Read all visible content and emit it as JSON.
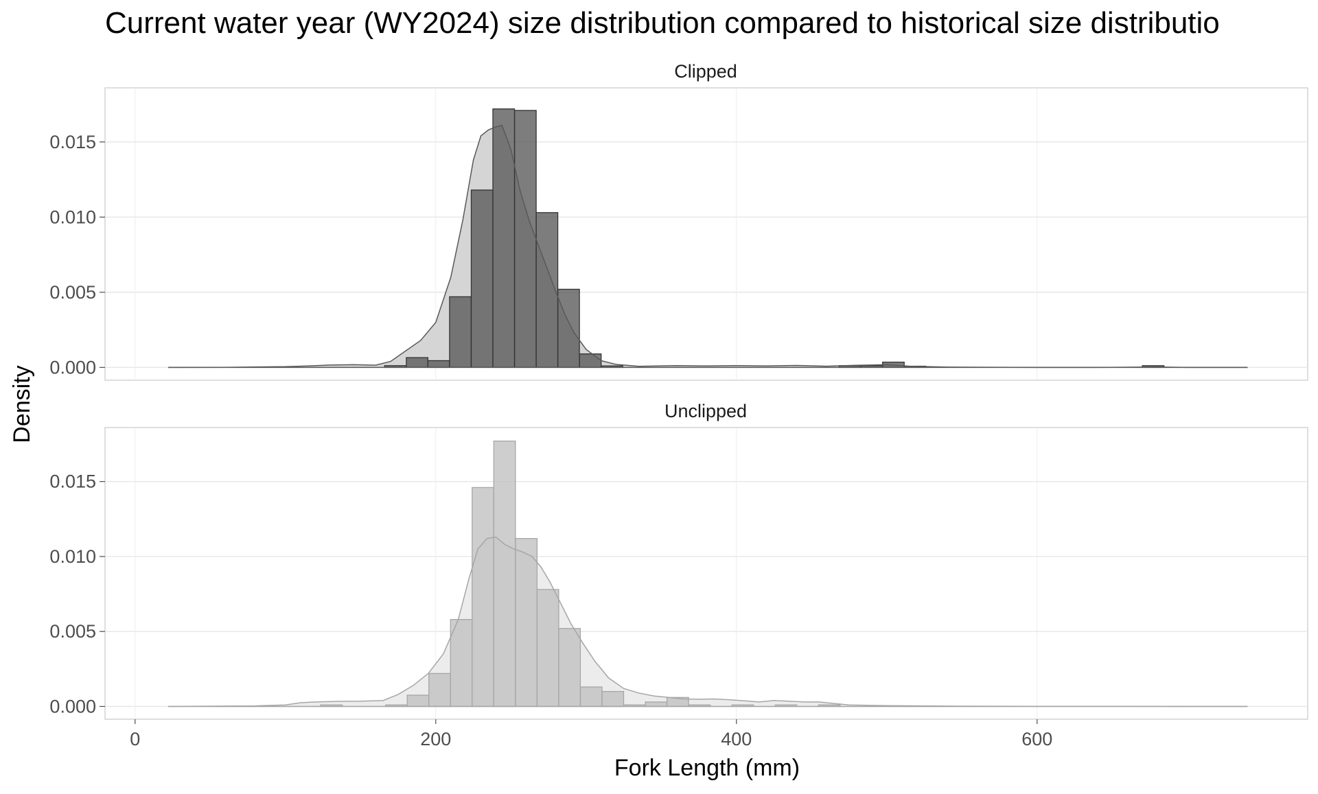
{
  "chart_data": {
    "type": "bar",
    "title": "Current water year (WY2024) size distribution compared to historical size distributio",
    "xlabel": "Fork Length (mm)",
    "ylabel": "Density",
    "xlim": [
      -20,
      780
    ],
    "ylim": [
      -0.00085,
      0.0186
    ],
    "x_ticks": [
      0,
      200,
      400,
      600
    ],
    "x_tick_labels": [
      "0",
      "200",
      "400",
      "600"
    ],
    "y_ticks": [
      0.0,
      0.005,
      0.01,
      0.015
    ],
    "y_tick_labels": [
      "0.000",
      "0.005",
      "0.010",
      "0.015"
    ],
    "grid": true,
    "legend": "none",
    "bin_width": 14.4,
    "density_x_range": [
      22,
      740
    ],
    "panels": [
      {
        "strip_label": "Clipped",
        "hist_fill": "#595959",
        "hist_stroke": "#333333",
        "density_fill": "#d3d3d3",
        "density_stroke": "#595959",
        "bars": [
          {
            "x0": 22,
            "x1": 36.4,
            "density": 0.0
          },
          {
            "x0": 166,
            "x1": 180.4,
            "density": 0.00012
          },
          {
            "x0": 180.4,
            "x1": 194.8,
            "density": 0.00065
          },
          {
            "x0": 194.8,
            "x1": 209.2,
            "density": 0.00045
          },
          {
            "x0": 209.2,
            "x1": 223.6,
            "density": 0.0047
          },
          {
            "x0": 223.6,
            "x1": 238,
            "density": 0.0118
          },
          {
            "x0": 238,
            "x1": 252.4,
            "density": 0.0172
          },
          {
            "x0": 252.4,
            "x1": 266.8,
            "density": 0.0171
          },
          {
            "x0": 266.8,
            "x1": 281.2,
            "density": 0.0103
          },
          {
            "x0": 281.2,
            "x1": 295.6,
            "density": 0.0052
          },
          {
            "x0": 295.6,
            "x1": 310,
            "density": 0.0009
          },
          {
            "x0": 310,
            "x1": 324.4,
            "density": 0.0001
          },
          {
            "x0": 468.4,
            "x1": 482.8,
            "density": 0.00012
          },
          {
            "x0": 482.8,
            "x1": 497.2,
            "density": 0.00012
          },
          {
            "x0": 497.2,
            "x1": 511.6,
            "density": 0.00035
          },
          {
            "x0": 511.6,
            "x1": 526,
            "density": 8e-05
          },
          {
            "x0": 670,
            "x1": 684.4,
            "density": 0.00012
          }
        ],
        "density_curve": [
          [
            22,
            0.0
          ],
          [
            60,
            1e-05
          ],
          [
            100,
            5e-05
          ],
          [
            115,
            0.0001
          ],
          [
            130,
            0.00016
          ],
          [
            145,
            0.00018
          ],
          [
            160,
            0.00015
          ],
          [
            170,
            0.0004
          ],
          [
            180,
            0.0011
          ],
          [
            190,
            0.0018
          ],
          [
            200,
            0.003
          ],
          [
            210,
            0.006
          ],
          [
            218,
            0.0098
          ],
          [
            225,
            0.0138
          ],
          [
            230,
            0.0154
          ],
          [
            235,
            0.0158
          ],
          [
            240,
            0.016
          ],
          [
            244,
            0.0161
          ],
          [
            250,
            0.0145
          ],
          [
            256,
            0.0118
          ],
          [
            262,
            0.0098
          ],
          [
            268,
            0.0082
          ],
          [
            274,
            0.0066
          ],
          [
            280,
            0.005
          ],
          [
            286,
            0.0035
          ],
          [
            292,
            0.0023
          ],
          [
            300,
            0.0012
          ],
          [
            310,
            0.00045
          ],
          [
            320,
            0.0002
          ],
          [
            335,
            7e-05
          ],
          [
            360,
            0.00012
          ],
          [
            380,
            0.0001
          ],
          [
            400,
            0.00012
          ],
          [
            420,
            0.0001
          ],
          [
            440,
            0.00013
          ],
          [
            460,
            8e-05
          ],
          [
            480,
            0.00014
          ],
          [
            500,
            0.00018
          ],
          [
            515,
            8e-05
          ],
          [
            540,
            2e-05
          ],
          [
            600,
            0.0
          ],
          [
            640,
            0.0
          ],
          [
            670,
            2e-05
          ],
          [
            680,
            3e-05
          ],
          [
            700,
            0.0
          ],
          [
            740,
            0.0
          ]
        ]
      },
      {
        "strip_label": "Unclipped",
        "hist_fill": "#c0c0c0",
        "hist_stroke": "#a6a6a6",
        "density_fill": "#ebebeb",
        "density_stroke": "#a6a6a6",
        "bars": [
          {
            "x0": 22,
            "x1": 36.4,
            "density": 0.0
          },
          {
            "x0": 123.4,
            "x1": 137.8,
            "density": 0.0001
          },
          {
            "x0": 166.6,
            "x1": 181,
            "density": 0.0001
          },
          {
            "x0": 181,
            "x1": 195.4,
            "density": 0.00075
          },
          {
            "x0": 195.4,
            "x1": 209.8,
            "density": 0.0022
          },
          {
            "x0": 209.8,
            "x1": 224.2,
            "density": 0.0058
          },
          {
            "x0": 224.2,
            "x1": 238.6,
            "density": 0.0146
          },
          {
            "x0": 238.6,
            "x1": 253,
            "density": 0.0177
          },
          {
            "x0": 253,
            "x1": 267.4,
            "density": 0.0112
          },
          {
            "x0": 267.4,
            "x1": 281.8,
            "density": 0.0078
          },
          {
            "x0": 281.8,
            "x1": 296.2,
            "density": 0.0052
          },
          {
            "x0": 296.2,
            "x1": 310.6,
            "density": 0.0013
          },
          {
            "x0": 310.6,
            "x1": 325,
            "density": 0.001
          },
          {
            "x0": 325,
            "x1": 339.4,
            "density": 0.0001
          },
          {
            "x0": 339.4,
            "x1": 353.8,
            "density": 0.0003
          },
          {
            "x0": 353.8,
            "x1": 368.2,
            "density": 0.0006
          },
          {
            "x0": 368.2,
            "x1": 382.6,
            "density": 0.0001
          },
          {
            "x0": 397,
            "x1": 411.4,
            "density": 0.0001
          },
          {
            "x0": 425.8,
            "x1": 440.2,
            "density": 0.0001
          },
          {
            "x0": 454.6,
            "x1": 469,
            "density": 0.0001
          }
        ],
        "density_curve": [
          [
            22,
            0.0
          ],
          [
            50,
            2e-05
          ],
          [
            80,
            4e-05
          ],
          [
            100,
            0.0001
          ],
          [
            110,
            0.00025
          ],
          [
            120,
            0.0003
          ],
          [
            135,
            0.00034
          ],
          [
            150,
            0.00035
          ],
          [
            165,
            0.0004
          ],
          [
            175,
            0.0008
          ],
          [
            185,
            0.0014
          ],
          [
            195,
            0.0022
          ],
          [
            205,
            0.0035
          ],
          [
            215,
            0.0058
          ],
          [
            222,
            0.0085
          ],
          [
            228,
            0.0105
          ],
          [
            234,
            0.0112
          ],
          [
            240,
            0.0113
          ],
          [
            246,
            0.0108
          ],
          [
            252,
            0.0105
          ],
          [
            258,
            0.0103
          ],
          [
            264,
            0.01
          ],
          [
            270,
            0.0093
          ],
          [
            276,
            0.0083
          ],
          [
            282,
            0.0071
          ],
          [
            290,
            0.0055
          ],
          [
            298,
            0.0042
          ],
          [
            306,
            0.003
          ],
          [
            315,
            0.0019
          ],
          [
            325,
            0.0012
          ],
          [
            335,
            0.0009
          ],
          [
            345,
            0.0007
          ],
          [
            355,
            0.0006
          ],
          [
            365,
            0.0005
          ],
          [
            375,
            0.00048
          ],
          [
            385,
            0.0005
          ],
          [
            395,
            0.00045
          ],
          [
            405,
            0.00038
          ],
          [
            415,
            0.0003
          ],
          [
            425,
            0.0004
          ],
          [
            435,
            0.00035
          ],
          [
            445,
            0.0003
          ],
          [
            455,
            0.0003
          ],
          [
            465,
            0.0002
          ],
          [
            475,
            0.0001
          ],
          [
            500,
            5e-05
          ],
          [
            550,
            2e-05
          ],
          [
            600,
            1e-05
          ],
          [
            650,
            1e-05
          ],
          [
            700,
            0.0
          ],
          [
            740,
            0.0
          ]
        ]
      }
    ]
  }
}
